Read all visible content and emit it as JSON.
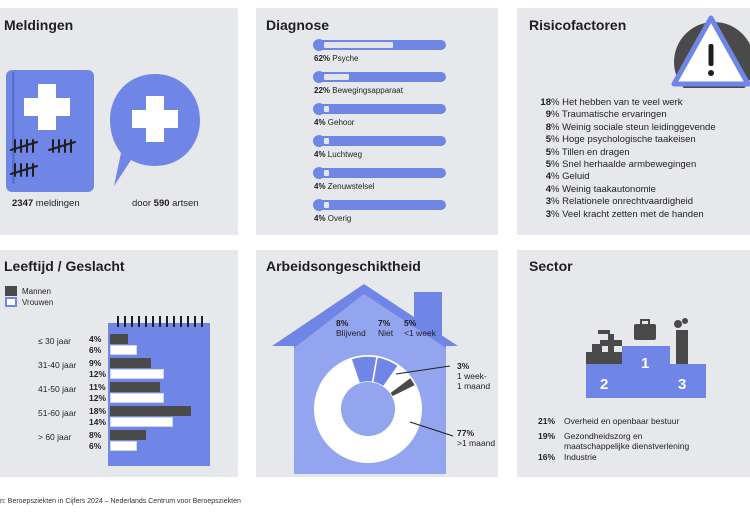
{
  "panels": {
    "meldingen": {
      "title": "Meldingen",
      "count_value": "2347",
      "count_label": "meldingen",
      "doctors_prefix": "door",
      "doctors_value": "590",
      "doctors_label": "artsen"
    },
    "diagnose": {
      "title": "Diagnose"
    },
    "risico": {
      "title": "Risicofactoren"
    },
    "leeftijd": {
      "title": "Leeftijd / Geslacht",
      "legend_men": "Mannen",
      "legend_women": "Vrouwen"
    },
    "arbeid": {
      "title": "Arbeidsongeschiktheid"
    },
    "sector": {
      "title": "Sector",
      "podium": [
        "1",
        "2",
        "3"
      ]
    }
  },
  "footer": "n: Beroepsziekten in Cijfers 2024 – Nederlands Centrum voor Beroepsziekten",
  "colors": {
    "accent": "#6f86e6",
    "light_accent": "#93a5ee",
    "dark": "#4a4a4a",
    "panel": "#e7e8ec"
  },
  "chart_data": [
    {
      "type": "bar",
      "title": "Diagnose",
      "categories": [
        "Psyche",
        "Bewegingsapparaat",
        "Gehoor",
        "Luchtweg",
        "Zenuwstelsel",
        "Overig"
      ],
      "values": [
        62,
        22,
        4,
        4,
        4,
        4
      ],
      "value_labels": [
        "62%",
        "22%",
        "4%",
        "4%",
        "4%",
        "4%"
      ]
    },
    {
      "type": "bar",
      "title": "Risicofactoren",
      "categories": [
        "Het hebben van te veel werk",
        "Traumatische ervaringen",
        "Weinig sociale steun leidinggevende",
        "Hoge psychologische taakeisen",
        "Tillen en dragen",
        "Snel herhaalde armbewegingen",
        "Geluid",
        "Weinig taakautonomie",
        "Relationele onrechtvaardigheid",
        "Veel kracht zetten met de handen"
      ],
      "values": [
        18,
        9,
        8,
        5,
        5,
        5,
        4,
        4,
        3,
        3
      ],
      "value_labels": [
        "18",
        "9",
        "8",
        "5",
        "5",
        "5",
        "4",
        "4",
        "3",
        "3"
      ],
      "unit": "%"
    },
    {
      "type": "bar",
      "title": "Leeftijd / Geslacht",
      "categories": [
        "≤ 30 jaar",
        "31-40 jaar",
        "41-50 jaar",
        "51-60 jaar",
        "> 60 jaar"
      ],
      "series": [
        {
          "name": "Mannen",
          "values": [
            4,
            9,
            11,
            18,
            8
          ],
          "labels": [
            "4%",
            "9%",
            "11%",
            "18%",
            "8%"
          ]
        },
        {
          "name": "Vrouwen",
          "values": [
            6,
            12,
            12,
            14,
            6
          ],
          "labels": [
            "6%",
            "12%",
            "12%",
            "14%",
            "6%"
          ]
        }
      ]
    },
    {
      "type": "pie",
      "title": "Arbeidsongeschiktheid",
      "categories": [
        "Blijvend",
        "Niet",
        "<1 week",
        "1 week-1 maand",
        ">1 maand"
      ],
      "values": [
        8,
        7,
        5,
        3,
        77
      ],
      "value_labels": [
        "8%",
        "7%",
        "5%",
        "3%",
        "77%"
      ]
    },
    {
      "type": "bar",
      "title": "Sector",
      "categories": [
        "Overheid en openbaar bestuur",
        "Gezondheidszorg en maatschappelijke dienstverlening",
        "Industrie"
      ],
      "values": [
        21,
        19,
        16
      ],
      "value_labels": [
        "21%",
        "19%",
        "16%"
      ]
    }
  ]
}
